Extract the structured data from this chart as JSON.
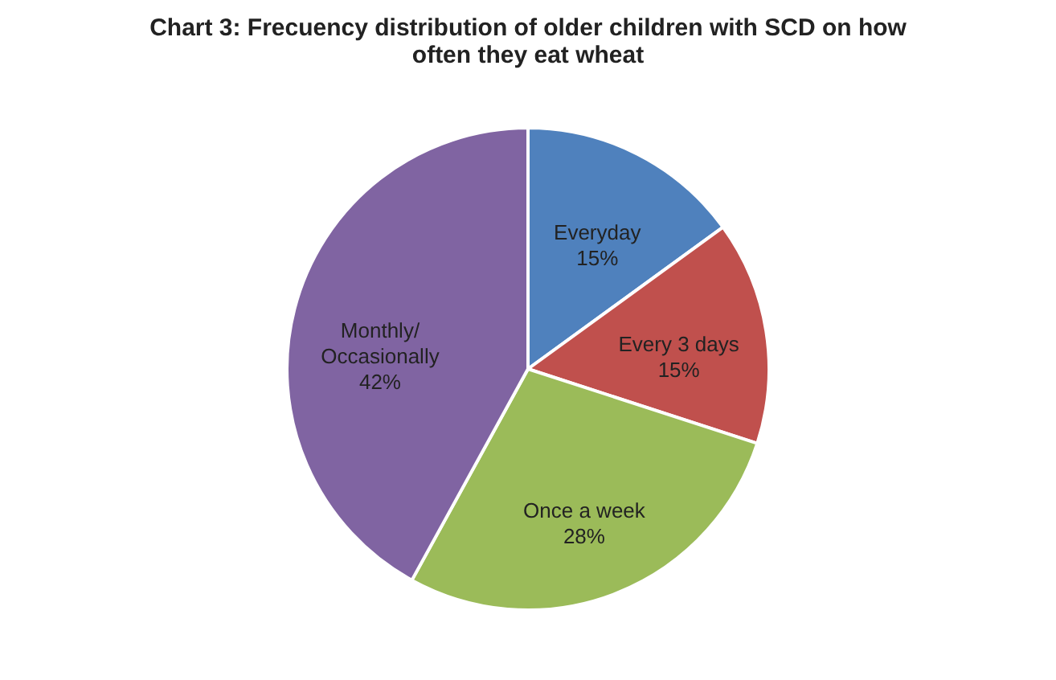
{
  "chart_data": {
    "type": "pie",
    "title": "Chart 3: Frecuency distribution of older children with SCD on how often they eat wheat",
    "categories": [
      "Everyday",
      "Every 3 days",
      "Once a week",
      "Monthly/ Occasionally"
    ],
    "values": [
      15,
      15,
      28,
      42
    ],
    "value_labels": [
      "15%",
      "15%",
      "28%",
      "42%"
    ],
    "colors": [
      "#4f81bd",
      "#c0504d",
      "#9bbb59",
      "#8064a2"
    ],
    "legend": false
  }
}
